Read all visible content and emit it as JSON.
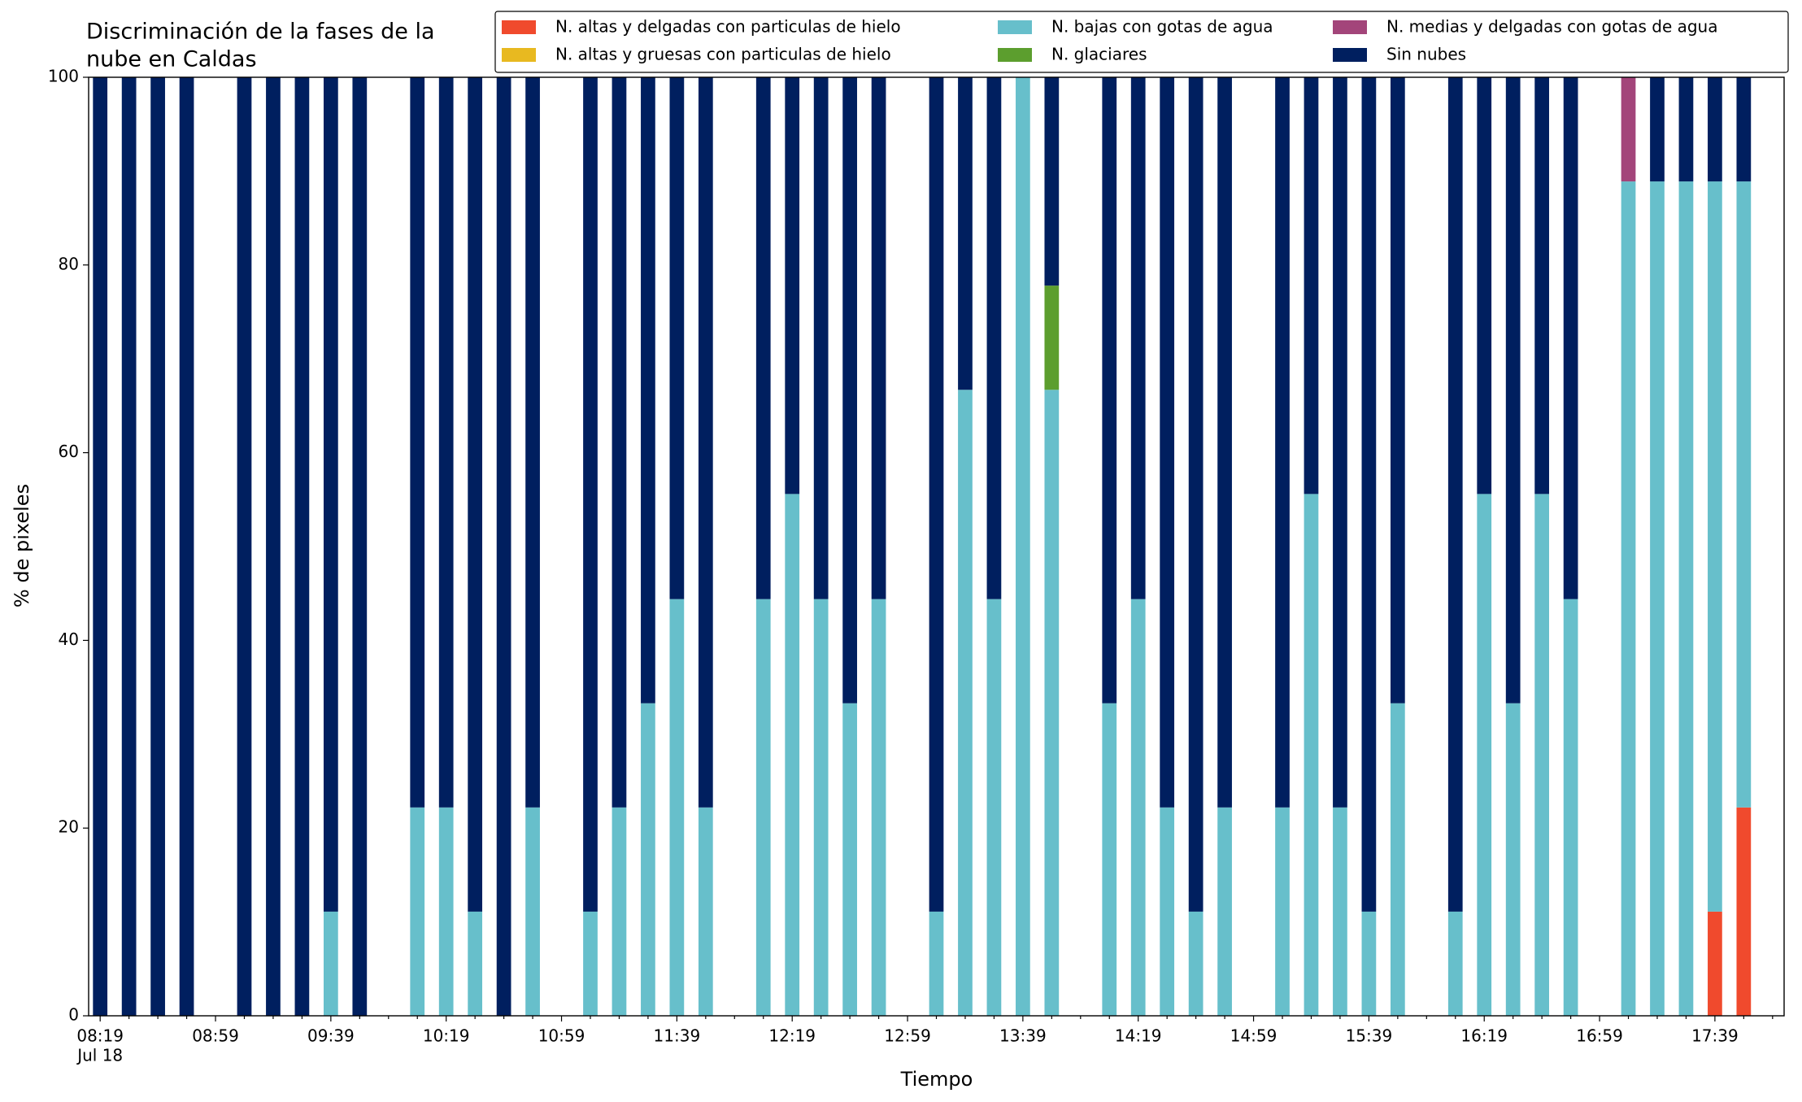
{
  "chart_data": {
    "type": "stacked_bar",
    "title": [
      "Discriminación de la fases de la",
      "nube en Caldas"
    ],
    "x_label": "Tiempo",
    "y_label": "% de pixeles",
    "x_date_label": "Jul 18",
    "categories": [
      "08:19",
      null,
      null,
      null,
      "08:59",
      null,
      null,
      null,
      "09:39",
      null,
      null,
      null,
      "10:19",
      null,
      null,
      null,
      "10:59",
      null,
      null,
      null,
      "11:39",
      null,
      null,
      null,
      "12:19",
      null,
      null,
      null,
      "12:59",
      null,
      null,
      null,
      "13:39",
      null,
      null,
      null,
      "14:19",
      null,
      null,
      null,
      "14:59",
      null,
      null,
      null,
      "15:39",
      null,
      null,
      null,
      "16:19",
      null,
      null,
      null,
      "16:59",
      null,
      null,
      null,
      "17:39",
      null,
      null
    ],
    "series": [
      {
        "name": "N. altas y delgadas con particulas de hielo",
        "color": "#f04a2d",
        "values": [
          0,
          0,
          0,
          0,
          null,
          0,
          0,
          0,
          0,
          0,
          null,
          0,
          0,
          0,
          0,
          0,
          null,
          0,
          0,
          0,
          0,
          0,
          null,
          0,
          0,
          0,
          0,
          0,
          null,
          0,
          0,
          0,
          0,
          0,
          null,
          0,
          0,
          0,
          0,
          0,
          null,
          0,
          0,
          0,
          0,
          0,
          null,
          0,
          0,
          0,
          0,
          0,
          null,
          0,
          0,
          0,
          11.1,
          22.2,
          null
        ]
      },
      {
        "name": "N. altas y gruesas con particulas de hielo",
        "color": "#e8b920",
        "values": [
          0,
          0,
          0,
          0,
          null,
          0,
          0,
          0,
          0,
          0,
          null,
          0,
          0,
          0,
          0,
          0,
          null,
          0,
          0,
          0,
          0,
          0,
          null,
          0,
          0,
          0,
          0,
          0,
          null,
          0,
          0,
          0,
          0,
          0,
          null,
          0,
          0,
          0,
          0,
          0,
          null,
          0,
          0,
          0,
          0,
          0,
          null,
          0,
          0,
          0,
          0,
          0,
          null,
          0,
          0,
          0,
          0,
          0,
          null
        ]
      },
      {
        "name": "N. bajas con gotas de agua",
        "color": "#67bfcb",
        "values": [
          0,
          0,
          0,
          0,
          null,
          0,
          0,
          0,
          11.1,
          0,
          null,
          22.2,
          22.2,
          11.1,
          0,
          22.2,
          null,
          11.1,
          22.2,
          33.3,
          44.4,
          22.2,
          null,
          44.4,
          55.6,
          44.4,
          33.3,
          44.4,
          null,
          11.1,
          66.7,
          44.4,
          100,
          66.7,
          null,
          33.3,
          44.4,
          22.2,
          11.1,
          22.2,
          null,
          22.2,
          55.6,
          22.2,
          11.1,
          33.3,
          null,
          11.1,
          55.6,
          33.3,
          55.6,
          44.4,
          null,
          88.9,
          88.9,
          88.9,
          77.8,
          66.7,
          null
        ]
      },
      {
        "name": "N. glaciares",
        "color": "#5c9e2e",
        "values": [
          0,
          0,
          0,
          0,
          null,
          0,
          0,
          0,
          0,
          0,
          null,
          0,
          0,
          0,
          0,
          0,
          null,
          0,
          0,
          0,
          0,
          0,
          null,
          0,
          0,
          0,
          0,
          0,
          null,
          0,
          0,
          0,
          0,
          11.1,
          null,
          0,
          0,
          0,
          0,
          0,
          null,
          0,
          0,
          0,
          0,
          0,
          null,
          0,
          0,
          0,
          0,
          0,
          null,
          0,
          0,
          0,
          0,
          0,
          null
        ]
      },
      {
        "name": "N. medias y delgadas con gotas de agua",
        "color": "#a3457a",
        "values": [
          0,
          0,
          0,
          0,
          null,
          0,
          0,
          0,
          0,
          0,
          null,
          0,
          0,
          0,
          0,
          0,
          null,
          0,
          0,
          0,
          0,
          0,
          null,
          0,
          0,
          0,
          0,
          0,
          null,
          0,
          0,
          0,
          0,
          0,
          null,
          0,
          0,
          0,
          0,
          0,
          null,
          0,
          0,
          0,
          0,
          0,
          null,
          0,
          0,
          0,
          0,
          0,
          null,
          11.1,
          0,
          0,
          0,
          0,
          null
        ]
      },
      {
        "name": "Sin nubes",
        "color": "#001f5f",
        "values": [
          100,
          100,
          100,
          100,
          null,
          100,
          100,
          100,
          88.9,
          100,
          null,
          77.8,
          77.8,
          88.9,
          100,
          77.8,
          null,
          88.9,
          77.8,
          66.7,
          55.6,
          77.8,
          null,
          55.6,
          44.4,
          55.6,
          66.7,
          55.6,
          null,
          88.9,
          33.3,
          55.6,
          0,
          22.2,
          null,
          66.7,
          55.6,
          77.8,
          88.9,
          77.8,
          null,
          77.8,
          44.4,
          77.8,
          88.9,
          66.7,
          null,
          88.9,
          44.4,
          66.7,
          44.4,
          55.6,
          null,
          0,
          11.1,
          11.1,
          11.1,
          11.1,
          null
        ]
      }
    ],
    "ylim": [
      0,
      100
    ],
    "yticks": [
      0,
      20,
      40,
      60,
      80,
      100
    ],
    "grid": false,
    "legend": "top-right"
  }
}
